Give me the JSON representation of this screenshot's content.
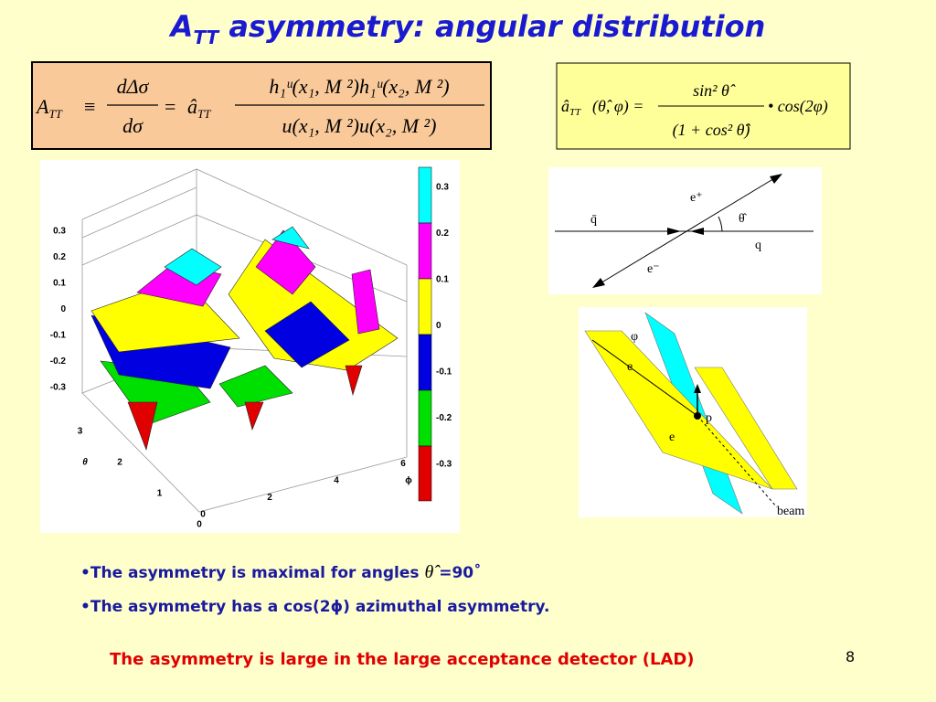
{
  "title": {
    "main": "A",
    "sub": "TT",
    "rest": " asymmetry: angular distribution"
  },
  "formula_left": {
    "lhs": "A",
    "lhs_sub": "TT",
    "equiv": "≡",
    "frac1_num": "dΔσ",
    "frac1_den": "dσ",
    "eq": "=",
    "coef": "â",
    "coef_sub": "TT",
    "frac2_num": "h₁ᵘ(x₁, M ²)h₁ᵘ(x₂, M ²)",
    "frac2_den": "u(x₁, M ²)u(x₂, M ²)"
  },
  "formula_right": {
    "lhs": "â",
    "lhs_sub": "TT",
    "args": "(θ̂, φ) =",
    "num": "sin² θ̂",
    "den": "(1 + cos² θ̂)",
    "times": "• cos(2φ)"
  },
  "surface_plot": {
    "z_ticks": [
      "0.3",
      "0.2",
      "0.1",
      "0",
      "-0.1",
      "-0.2",
      "-0.3"
    ],
    "theta_ticks": [
      "0",
      "1",
      "2",
      "3"
    ],
    "theta_label": "θ",
    "phi_ticks": [
      "0",
      "2",
      "4",
      "6"
    ],
    "phi_label": "ϕ",
    "colorbar_ticks": [
      "0.3",
      "0.2",
      "0.1",
      "0",
      "-0.1",
      "-0.2",
      "-0.3"
    ]
  },
  "scattering_diagram": {
    "e_plus": "e⁺",
    "q_bar": "q̄",
    "theta": "θ̂",
    "q": "q",
    "e_minus": "e⁻"
  },
  "plane_diagram": {
    "phi": "φ",
    "e_top": "e",
    "p": "p",
    "e_bottom": "e",
    "beam": "beam"
  },
  "bullets": [
    {
      "text": "•The asymmetry is maximal for angles ",
      "symbol": "θ̂",
      "suffix": " =90˚"
    },
    {
      "text": "•The asymmetry has a cos(2ϕ) azimuthal asymmetry."
    }
  ],
  "footer": "The asymmetry is large in the large acceptance detector (LAD)",
  "page_number": "8"
}
